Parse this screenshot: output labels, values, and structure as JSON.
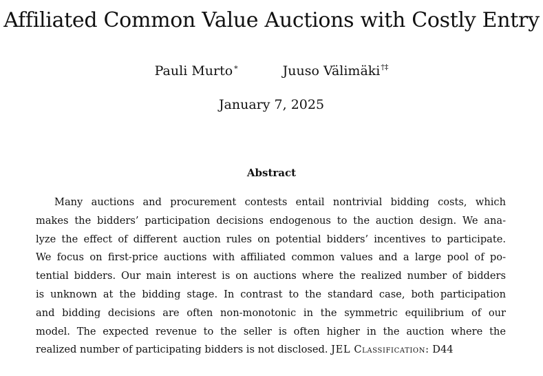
{
  "paper": {
    "title": "Affiliated Common Value Auctions with Costly Entry",
    "authors": [
      {
        "name": "Pauli Murto",
        "marks": "∗"
      },
      {
        "name": "Juuso Välimäki",
        "marks": "†‡"
      }
    ],
    "date": "January 7, 2025",
    "abstract_heading": "Abstract",
    "abstract_lines": [
      "Many auctions and procurement contests entail nontrivial bidding costs, which",
      "makes the bidders’ participation decisions endogenous to the auction design. We ana-",
      "lyze the effect of different auction rules on potential bidders’ incentives to participate.",
      "We focus on first-price auctions with affiliated common values and a large pool of po-",
      "tential bidders. Our main interest is on auctions where the realized number of bidders",
      "is unknown at the bidding stage. In contrast to the standard case, both participation",
      "and bidding decisions are often non-monotonic in the symmetric equilibrium of our",
      "model. The expected revenue to the seller is often higher in the auction where the"
    ],
    "abstract_last_line": "realized number of participating bidders is not disclosed.",
    "jel_label": "JEL Classification:",
    "jel_code": "D44"
  }
}
